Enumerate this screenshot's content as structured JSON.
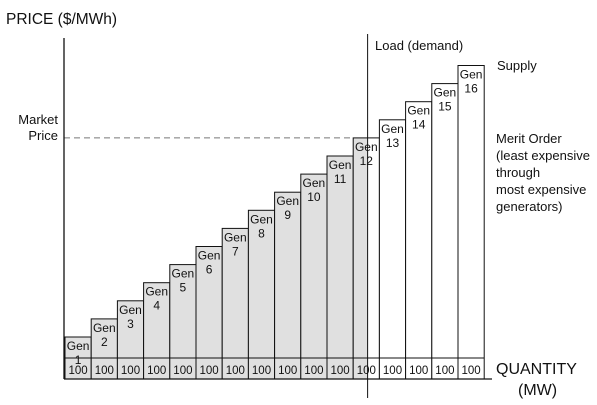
{
  "chart_data": {
    "type": "bar",
    "title": "",
    "ylabel": "PRICE ($/MWh)",
    "xlabel": "QUANTITY (MW)",
    "xlabel_lines": [
      "QUANTITY",
      "(MW)"
    ],
    "grid": false,
    "supply_label": "Supply",
    "load_label": "Load (demand)",
    "market_price_label_lines": [
      "Market",
      "Price"
    ],
    "merit_order_lines": [
      "Merit Order",
      "(least expensive",
      "through",
      "most expensive",
      "generators)"
    ],
    "bar_top_prefix": "Gen",
    "categories": [
      "1",
      "2",
      "3",
      "4",
      "5",
      "6",
      "7",
      "8",
      "9",
      "10",
      "11",
      "12",
      "13",
      "14",
      "15",
      "16"
    ],
    "quantities_mw": [
      100,
      100,
      100,
      100,
      100,
      100,
      100,
      100,
      100,
      100,
      100,
      100,
      100,
      100,
      100,
      100
    ],
    "relative_price": [
      1,
      2,
      3,
      4,
      5,
      6,
      7,
      8,
      9,
      10,
      11,
      12,
      13,
      14,
      15,
      16
    ],
    "dispatched": [
      true,
      true,
      true,
      true,
      true,
      true,
      true,
      true,
      true,
      true,
      true,
      "partial",
      false,
      false,
      false,
      false
    ],
    "load_position_bar_fraction": [
      12,
      0.55
    ],
    "market_price_level": 12,
    "colors": {
      "dispatched_fill": "#e0e0e0",
      "undispatched_fill": "#ffffff",
      "stroke": "#111111",
      "dashed_line": "#777777",
      "axis": "#111111"
    }
  }
}
